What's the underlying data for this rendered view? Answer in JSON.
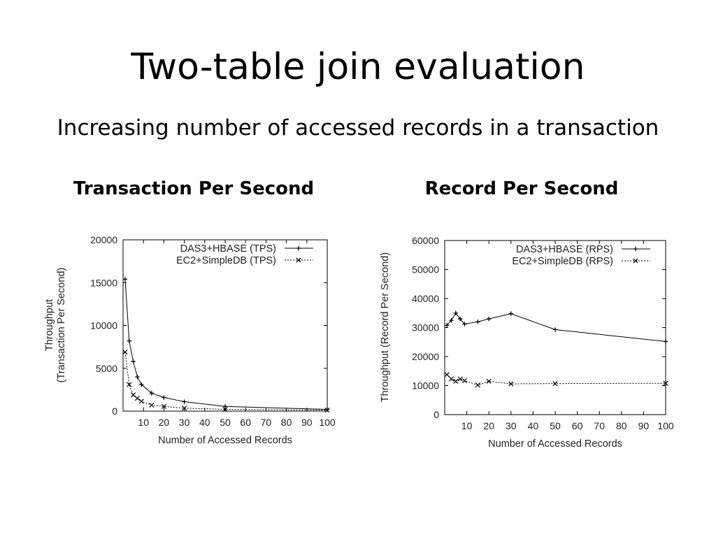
{
  "slide": {
    "title": "Two-table join evaluation",
    "subtitle": "Increasing number of accessed records in a transaction"
  },
  "chart_data": [
    {
      "type": "line",
      "title": "Transaction Per Second",
      "xlabel": "Number of Accessed Records",
      "ylabel": [
        "Throughput",
        "(Transaction Per Second)"
      ],
      "xlim": [
        0,
        100
      ],
      "ylim": [
        0,
        20000
      ],
      "xticks": [
        10,
        20,
        30,
        40,
        50,
        60,
        70,
        80,
        90,
        100
      ],
      "yticks": [
        0,
        5000,
        10000,
        15000,
        20000
      ],
      "grid": false,
      "legend_position": "top-right",
      "series": [
        {
          "name": "DAS3+HBASE (TPS)",
          "line": "solid",
          "marker": "plus",
          "color": "#000000",
          "points": [
            [
              1,
              15400
            ],
            [
              3,
              8200
            ],
            [
              5,
              5800
            ],
            [
              7,
              4000
            ],
            [
              9,
              3100
            ],
            [
              14,
              2100
            ],
            [
              20,
              1600
            ],
            [
              30,
              1100
            ],
            [
              50,
              550
            ],
            [
              100,
              200
            ]
          ]
        },
        {
          "name": "EC2+SimpleDB (TPS)",
          "line": "dotted",
          "marker": "cross",
          "color": "#000000",
          "points": [
            [
              1,
              6900
            ],
            [
              3,
              3100
            ],
            [
              5,
              1900
            ],
            [
              7,
              1500
            ],
            [
              9,
              1150
            ],
            [
              14,
              700
            ],
            [
              20,
              550
            ],
            [
              30,
              350
            ],
            [
              50,
              200
            ],
            [
              100,
              120
            ]
          ]
        }
      ]
    },
    {
      "type": "line",
      "title": "Record Per Second",
      "xlabel": "Number of Accessed Records",
      "ylabel": [
        "Throughput (Record Per Second)"
      ],
      "xlim": [
        0,
        100
      ],
      "ylim": [
        0,
        60000
      ],
      "xticks": [
        10,
        20,
        30,
        40,
        50,
        60,
        70,
        80,
        90,
        100
      ],
      "yticks": [
        0,
        10000,
        20000,
        30000,
        40000,
        50000,
        60000
      ],
      "grid": false,
      "legend_position": "top-right",
      "series": [
        {
          "name": "DAS3+HBASE (RPS)",
          "line": "solid",
          "marker": "plus",
          "color": "#000000",
          "points": [
            [
              1,
              30800
            ],
            [
              3,
              32500
            ],
            [
              5,
              35000
            ],
            [
              7,
              33000
            ],
            [
              9,
              31200
            ],
            [
              15,
              32000
            ],
            [
              20,
              33000
            ],
            [
              30,
              34800
            ],
            [
              50,
              29300
            ],
            [
              100,
              25200
            ]
          ]
        },
        {
          "name": "EC2+SimpleDB (RPS)",
          "line": "dotted",
          "marker": "cross",
          "color": "#000000",
          "points": [
            [
              1,
              13800
            ],
            [
              3,
              12300
            ],
            [
              5,
              11500
            ],
            [
              7,
              12300
            ],
            [
              9,
              11700
            ],
            [
              15,
              10200
            ],
            [
              20,
              11500
            ],
            [
              30,
              10600
            ],
            [
              50,
              10700
            ],
            [
              100,
              10800
            ]
          ]
        }
      ]
    }
  ]
}
